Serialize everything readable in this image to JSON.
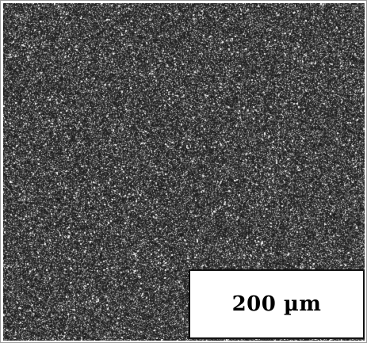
{
  "image": {
    "scale_bar_label": "200 µm",
    "colors": {
      "background": "#262626",
      "grain_light": "#e8e8e8",
      "frame": "#ffffff"
    }
  }
}
